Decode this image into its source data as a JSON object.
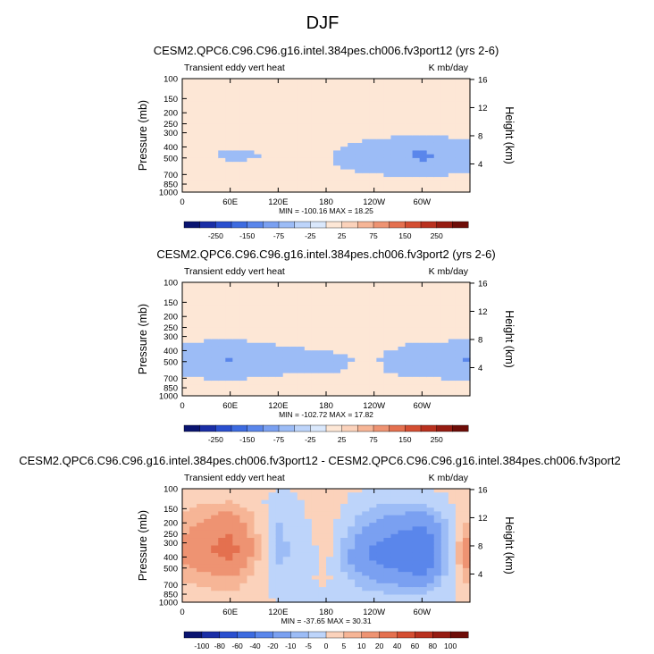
{
  "page_title": "DJF",
  "chart_data": [
    {
      "type": "heatmap",
      "title": "CESM2.QPC6.C96.C96.g16.intel.384pes.ch006.fv3port12 (yrs 2-6)",
      "left_label": "Transient eddy vert heat",
      "right_label": "K mb/day",
      "ylabel": "Pressure (mb)",
      "y2label": "Height (km)",
      "yticks": [
        "100",
        "150",
        "200",
        "250",
        "300",
        "400",
        "500",
        "700",
        "850",
        "1000"
      ],
      "y2ticks": [
        "16",
        "12",
        "8",
        "4"
      ],
      "xticks": [
        "0",
        "60E",
        "120E",
        "180",
        "120W",
        "60W"
      ],
      "stats": "MIN = -100.16   MAX =  18.25",
      "colorbar_labels": [
        "-250",
        "-150",
        "-75",
        "-25",
        "25",
        "75",
        "150",
        "250"
      ],
      "colors": [
        "#0a1470",
        "#1a2ea6",
        "#2a4fcf",
        "#3d6be0",
        "#5a86eb",
        "#7aa0f1",
        "#9cbcf6",
        "#bdd4fa",
        "#dae8fc",
        "#fde7d6",
        "#fbd2bb",
        "#f6b596",
        "#ee9372",
        "#e4704f",
        "#d44e32",
        "#b9311f",
        "#961c12",
        "#6e0d08"
      ],
      "values": [
        [
          10,
          12,
          9,
          7,
          -5,
          -14,
          -18,
          -16,
          -6,
          2
        ],
        [
          10,
          11,
          8,
          6,
          -5,
          -20,
          -28,
          -24,
          -8,
          1
        ],
        [
          10,
          12,
          9,
          7,
          -5,
          -18,
          -24,
          -22,
          -6,
          2
        ],
        [
          10,
          11,
          8,
          6,
          -4,
          -16,
          -20,
          -19,
          -6,
          1
        ],
        [
          10,
          11,
          9,
          6,
          -6,
          -30,
          -50,
          -45,
          -10,
          2
        ],
        [
          10,
          12,
          9,
          7,
          -8,
          -45,
          -85,
          -70,
          -12,
          2
        ],
        [
          10,
          11,
          8,
          6,
          -7,
          -28,
          -45,
          -40,
          -10,
          1
        ]
      ]
    },
    {
      "type": "heatmap",
      "title": "CESM2.QPC6.C96.C96.g16.intel.384pes.ch006.fv3port2 (yrs 2-6)",
      "left_label": "Transient eddy vert heat",
      "right_label": "K mb/day",
      "ylabel": "Pressure (mb)",
      "y2label": "Height (km)",
      "yticks": [
        "100",
        "150",
        "200",
        "250",
        "300",
        "400",
        "500",
        "700",
        "850",
        "1000"
      ],
      "y2ticks": [
        "16",
        "12",
        "8",
        "4"
      ],
      "xticks": [
        "0",
        "60E",
        "120E",
        "180",
        "120W",
        "60W"
      ],
      "stats": "MIN = -102.72   MAX =  17.82",
      "colorbar_labels": [
        "-250",
        "-150",
        "-75",
        "-25",
        "25",
        "75",
        "150",
        "250"
      ],
      "colors": [
        "#0a1470",
        "#1a2ea6",
        "#2a4fcf",
        "#3d6be0",
        "#5a86eb",
        "#7aa0f1",
        "#9cbcf6",
        "#bdd4fa",
        "#dae8fc",
        "#fde7d6",
        "#fbd2bb",
        "#f6b596",
        "#ee9372",
        "#e4704f",
        "#d44e32",
        "#b9311f",
        "#961c12",
        "#6e0d08"
      ],
      "values": [
        [
          10,
          12,
          9,
          7,
          -6,
          -30,
          -45,
          -40,
          -10,
          2
        ],
        [
          10,
          11,
          8,
          6,
          -7,
          -40,
          -80,
          -65,
          -12,
          1
        ],
        [
          10,
          12,
          9,
          7,
          -5,
          -25,
          -40,
          -35,
          -8,
          2
        ],
        [
          10,
          11,
          8,
          6,
          -4,
          -20,
          -30,
          -28,
          -6,
          1
        ],
        [
          10,
          11,
          9,
          6,
          -4,
          -16,
          -22,
          -20,
          -6,
          2
        ],
        [
          10,
          12,
          9,
          7,
          -6,
          -30,
          -50,
          -45,
          -10,
          2
        ],
        [
          10,
          11,
          8,
          6,
          -7,
          -40,
          -80,
          -65,
          -12,
          1
        ]
      ]
    },
    {
      "type": "heatmap",
      "title": "CESM2.QPC6.C96.C96.g16.intel.384pes.ch006.fv3port12 - CESM2.QPC6.C96.C96.g16.intel.384pes.ch006.fv3port2",
      "left_label": "Transient eddy vert heat",
      "right_label": "K mb/day",
      "ylabel": "Pressure (mb)",
      "y2label": "Height (km)",
      "yticks": [
        "100",
        "150",
        "200",
        "250",
        "300",
        "400",
        "500",
        "700",
        "850",
        "1000"
      ],
      "y2ticks": [
        "16",
        "12",
        "8",
        "4"
      ],
      "xticks": [
        "0",
        "60E",
        "120E",
        "180",
        "120W",
        "60W"
      ],
      "stats": "MIN = -37.65   MAX =  30.31",
      "colorbar_labels": [
        "-100",
        "-80",
        "-60",
        "-40",
        "-20",
        "-10",
        "-5",
        "0",
        "5",
        "10",
        "20",
        "40",
        "60",
        "80",
        "100"
      ],
      "colors": [
        "#0a1470",
        "#1a2ea6",
        "#2a4fcf",
        "#3d6be0",
        "#5a86eb",
        "#7aa0f1",
        "#9cbcf6",
        "#bdd4fa",
        "#fbd2bb",
        "#f6b596",
        "#ee9372",
        "#e4704f",
        "#d44e32",
        "#b9311f",
        "#961c12",
        "#6e0d08"
      ],
      "values": [
        [
          1,
          3,
          5,
          8,
          10,
          14,
          10,
          6,
          3,
          1
        ],
        [
          2,
          5,
          12,
          18,
          22,
          25,
          18,
          10,
          6,
          2
        ],
        [
          0,
          -2,
          -4,
          -6,
          -6,
          -8,
          -5,
          -3,
          -2,
          0
        ],
        [
          1,
          2,
          3,
          2,
          2,
          2,
          1,
          1,
          0,
          0
        ],
        [
          0,
          -3,
          -8,
          -12,
          -18,
          -22,
          -20,
          -12,
          -6,
          -1
        ],
        [
          0,
          -4,
          -12,
          -20,
          -30,
          -35,
          -30,
          -18,
          -8,
          -2
        ],
        [
          1,
          3,
          5,
          8,
          14,
          20,
          15,
          10,
          4,
          1
        ]
      ]
    }
  ]
}
